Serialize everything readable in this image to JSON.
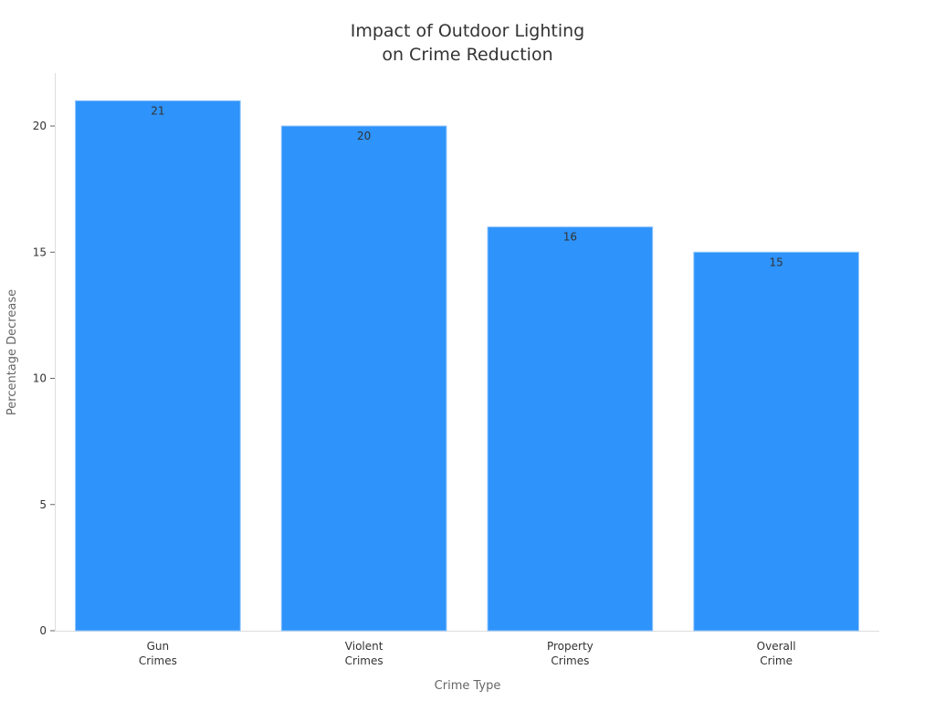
{
  "chart_data": {
    "type": "bar",
    "title_lines": [
      "Impact of Outdoor Lighting",
      "on Crime Reduction"
    ],
    "categories": [
      [
        "Gun",
        "Crimes"
      ],
      [
        "Violent",
        "Crimes"
      ],
      [
        "Property",
        "Crimes"
      ],
      [
        "Overall",
        "Crime"
      ]
    ],
    "values": [
      21,
      20,
      16,
      15
    ],
    "data_labels": [
      "21",
      "20",
      "16",
      "15"
    ],
    "xlabel": "Crime Type",
    "ylabel": "Percentage Decrease",
    "ylim": [
      0,
      22.1
    ],
    "yticks": [
      0,
      5,
      10,
      15,
      20
    ],
    "grid": false,
    "bar_color": "#2e93fa"
  }
}
